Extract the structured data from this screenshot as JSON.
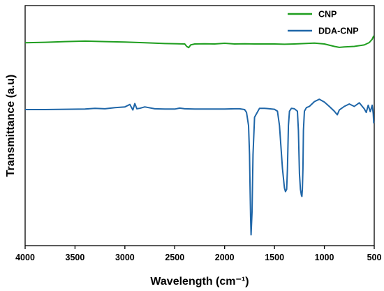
{
  "chart_data": {
    "type": "line",
    "xlabel": "Wavelength (cm⁻¹)",
    "ylabel": "Transmittance (a.u)",
    "xlim": [
      4000,
      500
    ],
    "x_reversed": true,
    "x_ticks": [
      4000,
      3500,
      3000,
      2500,
      2000,
      1500,
      1000,
      500
    ],
    "y_ticks_shown": false,
    "ylim": [
      0,
      100
    ],
    "grid": false,
    "legend_position": "top-right",
    "series": [
      {
        "name": "CNP",
        "color": "#1f9e1f",
        "x": [
          4000,
          3800,
          3600,
          3400,
          3200,
          3000,
          2800,
          2600,
          2400,
          2380,
          2360,
          2340,
          2300,
          2200,
          2100,
          2000,
          1900,
          1800,
          1700,
          1600,
          1500,
          1400,
          1300,
          1200,
          1100,
          1000,
          900,
          850,
          800,
          700,
          600,
          550,
          520,
          505
        ],
        "y": [
          84.5,
          84.7,
          85.0,
          85.2,
          85.0,
          84.8,
          84.5,
          84.2,
          84.0,
          83.0,
          82.5,
          83.6,
          84.0,
          84.1,
          84.0,
          84.3,
          84.0,
          84.1,
          84.0,
          84.0,
          84.0,
          83.9,
          84.0,
          84.2,
          84.4,
          84.0,
          83.0,
          82.6,
          82.8,
          83.0,
          83.6,
          84.6,
          86.0,
          87.4
        ]
      },
      {
        "name": "DDA-CNP",
        "color": "#1f66a8",
        "x": [
          4000,
          3800,
          3600,
          3400,
          3300,
          3200,
          3100,
          3000,
          2950,
          2920,
          2900,
          2880,
          2850,
          2800,
          2700,
          2600,
          2500,
          2450,
          2400,
          2300,
          2200,
          2100,
          2000,
          1900,
          1850,
          1800,
          1780,
          1760,
          1750,
          1745,
          1740,
          1735,
          1725,
          1715,
          1700,
          1650,
          1600,
          1550,
          1500,
          1470,
          1450,
          1420,
          1400,
          1390,
          1378,
          1370,
          1360,
          1350,
          1330,
          1300,
          1270,
          1260,
          1250,
          1240,
          1230,
          1225,
          1220,
          1215,
          1210,
          1200,
          1180,
          1150,
          1100,
          1050,
          1000,
          950,
          900,
          870,
          850,
          800,
          750,
          700,
          650,
          620,
          600,
          580,
          560,
          540,
          520,
          510,
          505
        ],
        "y": [
          56.7,
          56.7,
          56.8,
          56.9,
          57.2,
          57.0,
          57.5,
          57.8,
          58.8,
          56.5,
          59.2,
          57.0,
          57.2,
          57.8,
          57.0,
          56.9,
          56.9,
          57.3,
          57.0,
          56.9,
          56.9,
          56.9,
          56.9,
          57.0,
          57.0,
          56.7,
          55.5,
          50.0,
          38.0,
          25.0,
          12.0,
          4.5,
          14.0,
          38.0,
          53.5,
          57.2,
          57.2,
          57.0,
          56.8,
          56.0,
          50.0,
          32.0,
          24.0,
          22.5,
          23.5,
          32.0,
          50.0,
          56.0,
          57.2,
          57.0,
          56.0,
          48.0,
          30.0,
          23.5,
          21.0,
          20.5,
          23.5,
          32.0,
          48.0,
          56.0,
          57.5,
          58.0,
          60.0,
          61.0,
          59.8,
          58.0,
          56.0,
          54.5,
          56.5,
          58.0,
          59.0,
          58.0,
          59.5,
          58.0,
          57.0,
          55.5,
          58.5,
          55.8,
          58.5,
          55.0,
          51.0
        ]
      }
    ]
  }
}
